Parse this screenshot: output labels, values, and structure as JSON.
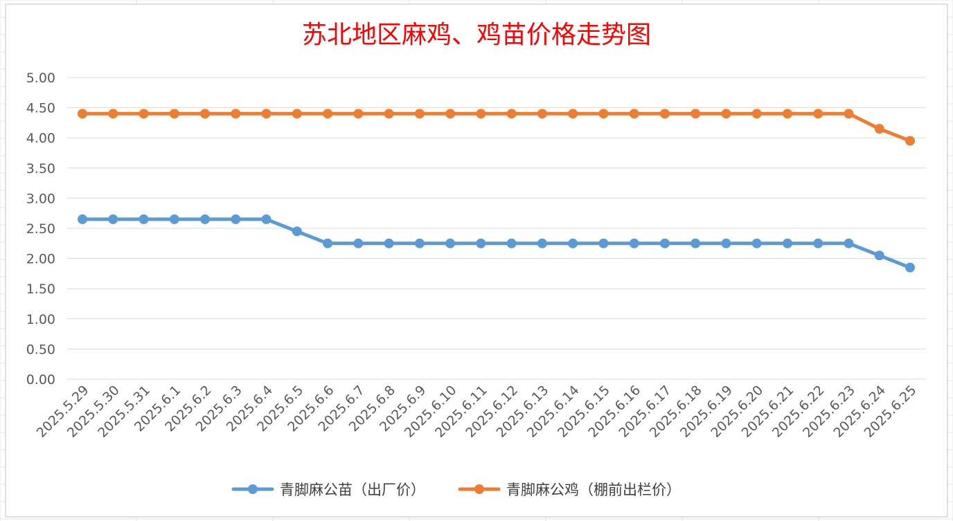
{
  "chart_data": {
    "type": "line",
    "title": "苏北地区麻鸡、鸡苗价格走势图",
    "xlabel": "",
    "ylabel": "",
    "ylim": [
      0,
      5
    ],
    "y_ticks": [
      "0.00",
      "0.50",
      "1.00",
      "1.50",
      "2.00",
      "2.50",
      "3.00",
      "3.50",
      "4.00",
      "4.50",
      "5.00"
    ],
    "grid": "horizontal",
    "legend_position": "bottom",
    "categories": [
      "2025.5.29",
      "2025.5.30",
      "2025.5.31",
      "2025.6.1",
      "2025.6.2",
      "2025.6.3",
      "2025.6.4",
      "2025.6.5",
      "2025.6.6",
      "2025.6.7",
      "2025.6.8",
      "2025.6.9",
      "2025.6.10",
      "2025.6.11",
      "2025.6.12",
      "2025.6.13",
      "2025.6.14",
      "2025.6.15",
      "2025.6.16",
      "2025.6.17",
      "2025.6.18",
      "2025.6.19",
      "2025.6.20",
      "2025.6.21",
      "2025.6.22",
      "2025.6.23",
      "2025.6.24",
      "2025.6.25"
    ],
    "series": [
      {
        "name": "青脚麻公苗（出厂价）",
        "color": "#5b9bd5",
        "values": [
          2.65,
          2.65,
          2.65,
          2.65,
          2.65,
          2.65,
          2.65,
          2.45,
          2.25,
          2.25,
          2.25,
          2.25,
          2.25,
          2.25,
          2.25,
          2.25,
          2.25,
          2.25,
          2.25,
          2.25,
          2.25,
          2.25,
          2.25,
          2.25,
          2.25,
          2.25,
          2.05,
          1.85
        ]
      },
      {
        "name": "青脚麻公鸡（棚前出栏价）",
        "color": "#ed7d31",
        "values": [
          4.4,
          4.4,
          4.4,
          4.4,
          4.4,
          4.4,
          4.4,
          4.4,
          4.4,
          4.4,
          4.4,
          4.4,
          4.4,
          4.4,
          4.4,
          4.4,
          4.4,
          4.4,
          4.4,
          4.4,
          4.4,
          4.4,
          4.4,
          4.4,
          4.4,
          4.4,
          4.15,
          3.95
        ]
      }
    ]
  }
}
